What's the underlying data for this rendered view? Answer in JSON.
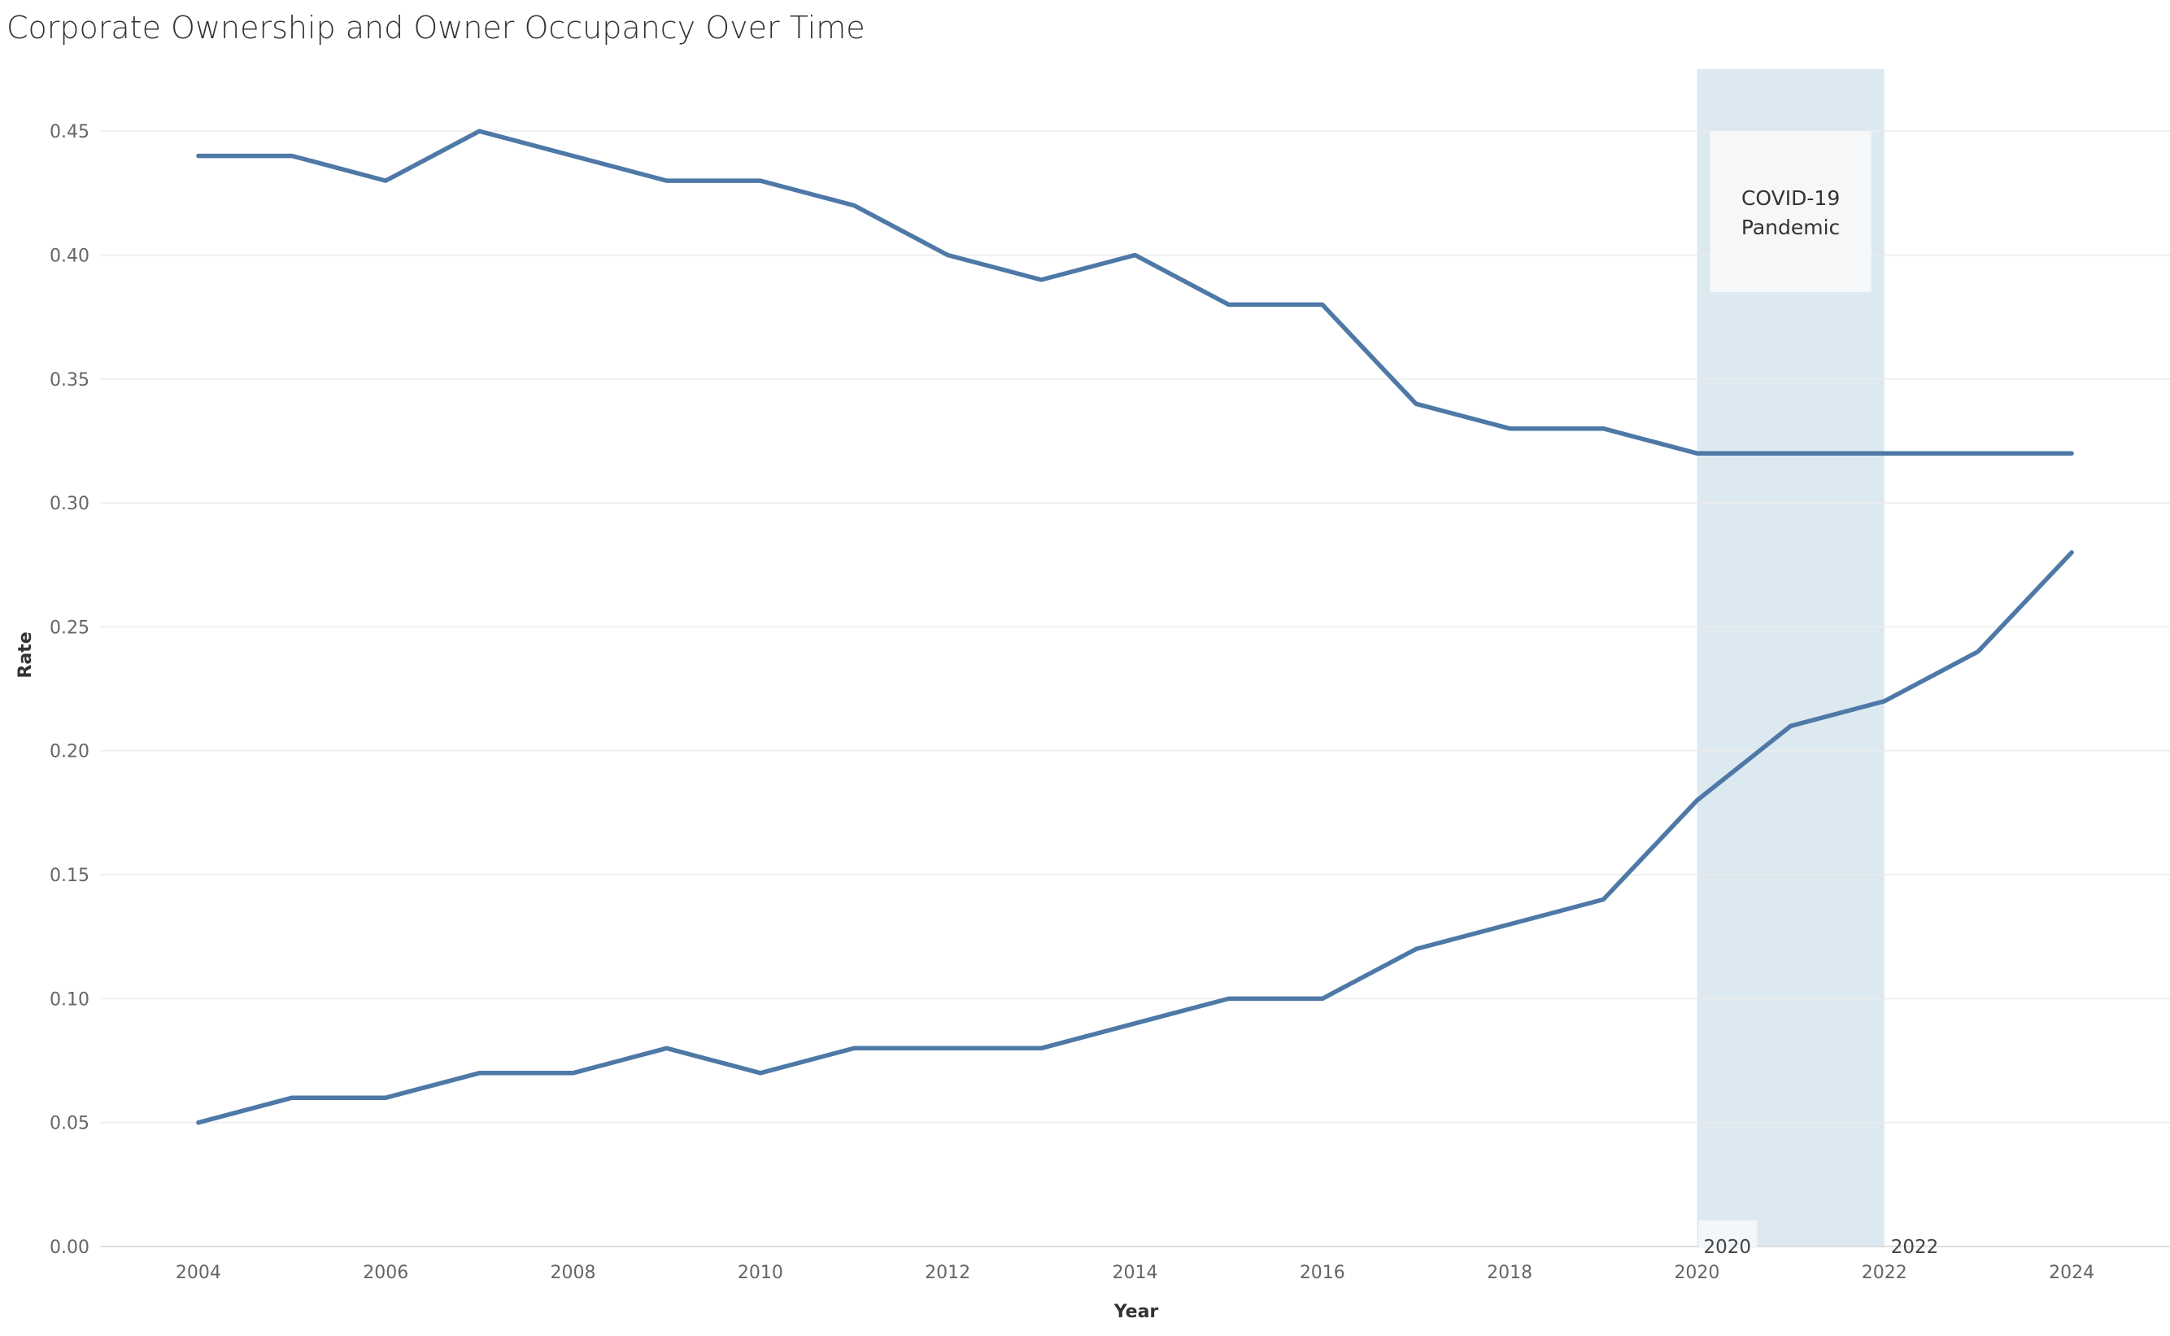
{
  "chart_data": {
    "type": "line",
    "title": "Corporate Ownership and Owner Occupancy Over Time",
    "xlabel": "Year",
    "ylabel": "Rate",
    "x": [
      2004,
      2005,
      2006,
      2007,
      2008,
      2009,
      2010,
      2011,
      2012,
      2013,
      2014,
      2015,
      2016,
      2017,
      2018,
      2019,
      2020,
      2021,
      2022,
      2023,
      2024
    ],
    "series": [
      {
        "values": [
          0.44,
          0.44,
          0.43,
          0.45,
          0.44,
          0.43,
          0.43,
          0.42,
          0.4,
          0.39,
          0.4,
          0.38,
          0.38,
          0.34,
          0.33,
          0.33,
          0.32,
          0.32,
          0.32,
          0.32,
          0.32
        ]
      },
      {
        "values": [
          0.05,
          0.06,
          0.06,
          0.07,
          0.07,
          0.08,
          0.07,
          0.08,
          0.08,
          0.08,
          0.09,
          0.1,
          0.1,
          0.12,
          0.13,
          0.14,
          0.18,
          0.21,
          0.22,
          0.24,
          0.28
        ]
      }
    ],
    "xlim": [
      2002.95,
      2025.05
    ],
    "ylim": [
      0,
      0.475
    ],
    "xticks": [
      "2004",
      "2006",
      "2008",
      "2010",
      "2012",
      "2014",
      "2016",
      "2018",
      "2020",
      "2022",
      "2024"
    ],
    "yticks": [
      "0.00",
      "0.05",
      "0.10",
      "0.15",
      "0.20",
      "0.25",
      "0.30",
      "0.35",
      "0.40",
      "0.45"
    ],
    "grid": true,
    "line_color": "#4e79a7",
    "band": {
      "start": 2020,
      "end": 2022,
      "start_label": "2020",
      "end_label": "2022",
      "color": "#dde9f0",
      "annotation": [
        "COVID-19",
        "Pandemic"
      ],
      "annotation_y_top": 0.45,
      "annotation_y_bottom": 0.385
    }
  }
}
